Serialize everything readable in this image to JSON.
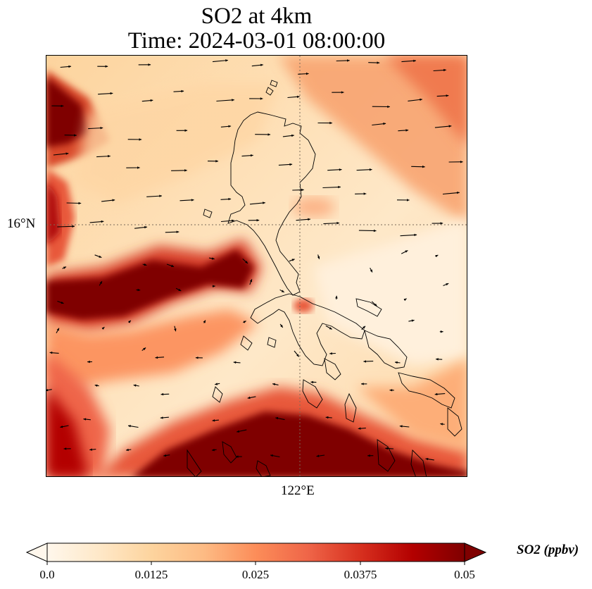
{
  "title": {
    "line1": "SO2 at 4km",
    "line2": "Time: 2024-03-01 08:00:00"
  },
  "map": {
    "lat_label": "16°N",
    "lon_label": "122°E",
    "gridline_color": "#7a6a5a",
    "coastline_color": "#000000"
  },
  "colorbar": {
    "label": "SO2 (ppbv)",
    "ticks": [
      "0.0",
      "0.0125",
      "0.025",
      "0.0375",
      "0.05"
    ],
    "range": [
      0.0,
      0.05
    ],
    "colormap": "OrRd",
    "colors": [
      "#fff7ec",
      "#fee8c8",
      "#fdd49e",
      "#fdbb84",
      "#fc8d59",
      "#ef6548",
      "#d7301f",
      "#b30000",
      "#7f0000"
    ]
  }
}
